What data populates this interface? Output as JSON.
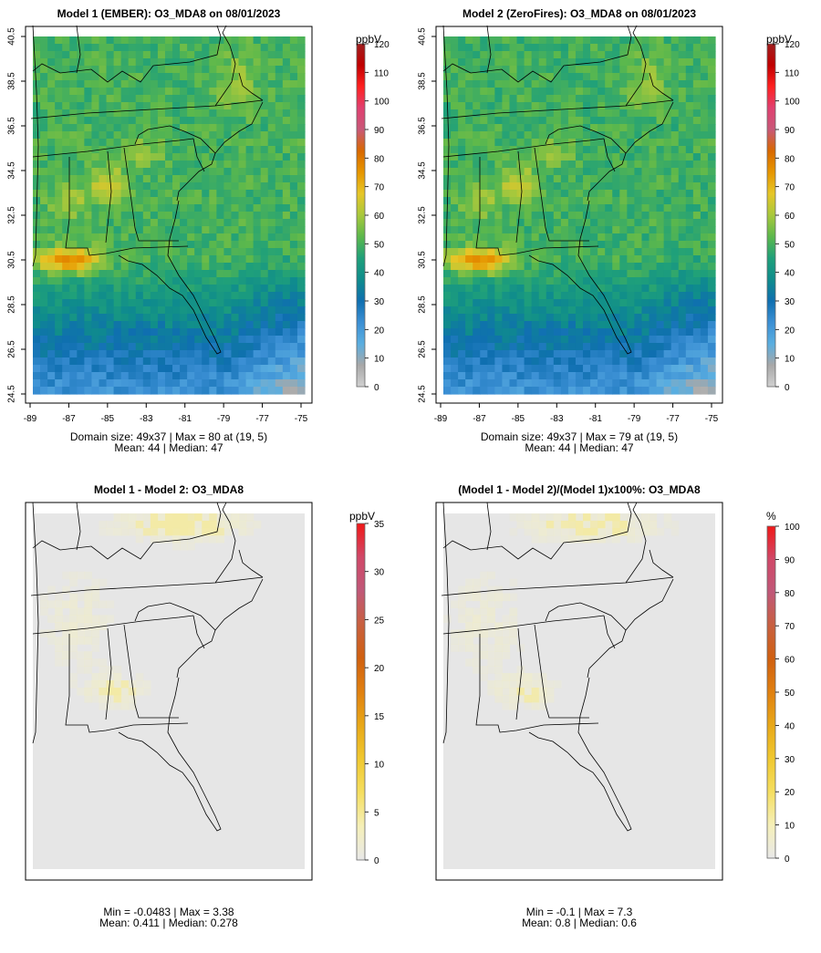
{
  "chart_data": [
    {
      "type": "heatmap",
      "title": "Model 1 (EMBER): O3_MDA8 on 08/01/2023",
      "x_ticks": [
        "-89",
        "-87",
        "-85",
        "-83",
        "-81",
        "-79",
        "-77",
        "-75"
      ],
      "y_ticks": [
        "24.5",
        "26.5",
        "28.5",
        "30.5",
        "32.5",
        "34.5",
        "36.5",
        "38.5",
        "40.5"
      ],
      "xlim": [
        -89,
        -75
      ],
      "ylim": [
        24.5,
        40.5
      ],
      "colorbar": {
        "unit": "ppbV",
        "ticks": [
          "0",
          "10",
          "20",
          "30",
          "40",
          "50",
          "60",
          "70",
          "80",
          "90",
          "100",
          "110",
          "120"
        ],
        "range": [
          0,
          120
        ]
      },
      "stats_line1": "Domain size: 49x37 | Max = 80 at (19, 5)",
      "stats_line2": "Mean: 44 |  Median: 47"
    },
    {
      "type": "heatmap",
      "title": "Model 2 (ZeroFires): O3_MDA8 on 08/01/2023",
      "x_ticks": [
        "-89",
        "-87",
        "-85",
        "-83",
        "-81",
        "-79",
        "-77",
        "-75"
      ],
      "y_ticks": [
        "24.5",
        "26.5",
        "28.5",
        "30.5",
        "32.5",
        "34.5",
        "36.5",
        "38.5",
        "40.5"
      ],
      "xlim": [
        -89,
        -75
      ],
      "ylim": [
        24.5,
        40.5
      ],
      "colorbar": {
        "unit": "ppbV",
        "ticks": [
          "0",
          "10",
          "20",
          "30",
          "40",
          "50",
          "60",
          "70",
          "80",
          "90",
          "100",
          "110",
          "120"
        ],
        "range": [
          0,
          120
        ]
      },
      "stats_line1": "Domain size: 49x37 | Max = 79 at (19, 5)",
      "stats_line2": "Mean: 44 |  Median: 47"
    },
    {
      "type": "heatmap",
      "title": "Model 1 - Model 2: O3_MDA8",
      "colorbar": {
        "unit": "ppbV",
        "ticks": [
          "0",
          "5",
          "10",
          "15",
          "20",
          "25",
          "30",
          "35"
        ],
        "range": [
          0,
          35
        ]
      },
      "stats_line1": "Min = -0.0483 | Max = 3.38",
      "stats_line2": "Mean: 0.411 |  Median: 0.278"
    },
    {
      "type": "heatmap",
      "title": "(Model 1 - Model 2)/(Model 1)x100%: O3_MDA8",
      "colorbar": {
        "unit": "%",
        "ticks": [
          "0",
          "10",
          "20",
          "30",
          "40",
          "50",
          "60",
          "70",
          "80",
          "90",
          "100"
        ],
        "range": [
          0,
          100
        ]
      },
      "stats_line1": "Min = -0.1 | Max = 7.3",
      "stats_line2": "Mean: 0.8 |  Median: 0.6"
    }
  ],
  "colors": {
    "ozone_scale": [
      "#d0d0d0",
      "#a8a8a8",
      "#5aaee0",
      "#3b8fd4",
      "#0f6fb0",
      "#0f8c8c",
      "#1fa07a",
      "#5cb84c",
      "#a8c83c",
      "#e6c628",
      "#e69600",
      "#d86800",
      "#c85878",
      "#e04070",
      "#ff2020",
      "#c00000",
      "#a02020"
    ],
    "diff_scale": [
      "#e8e8e8",
      "#f5efb8",
      "#f5de60",
      "#f0c830",
      "#e8a818",
      "#e08010",
      "#d06010",
      "#c86040",
      "#c05878",
      "#d04868",
      "#f01818"
    ],
    "no_data": "#e6e6e6"
  }
}
